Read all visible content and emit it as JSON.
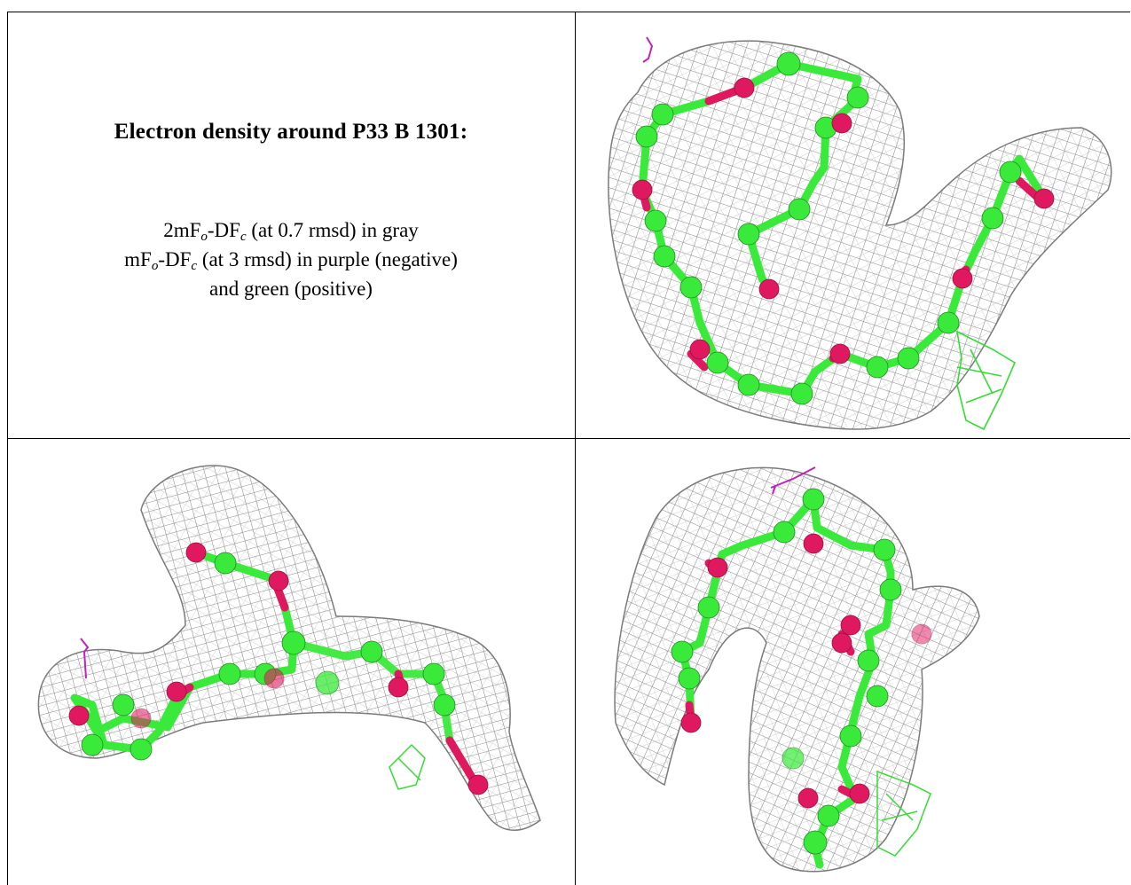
{
  "caption": {
    "title": "Electron density around P33 B 1301:",
    "line1": {
      "lead": "2mF",
      "sub_o": "o",
      "mid": "-DF",
      "sub_c": "c",
      "tail": " (at 0.7 rmsd) in gray"
    },
    "line2": {
      "lead": "mF",
      "sub_o": "o",
      "mid": "-DF",
      "sub_c": "c",
      "tail": " (at 3 rmsd) in purple (negative)"
    },
    "line3": "and green (positive)"
  },
  "colors": {
    "mesh_2fofc": "#8a8a8a",
    "mesh_neg": "#c020c0",
    "mesh_pos": "#33dd33",
    "carbon": "#3aea3a",
    "oxygen": "#e0185f"
  },
  "panels": [
    {
      "view": "top-right",
      "content": "molecule-density-view-1"
    },
    {
      "view": "bottom-left",
      "content": "molecule-density-view-2"
    },
    {
      "view": "bottom-right",
      "content": "molecule-density-view-3"
    }
  ]
}
